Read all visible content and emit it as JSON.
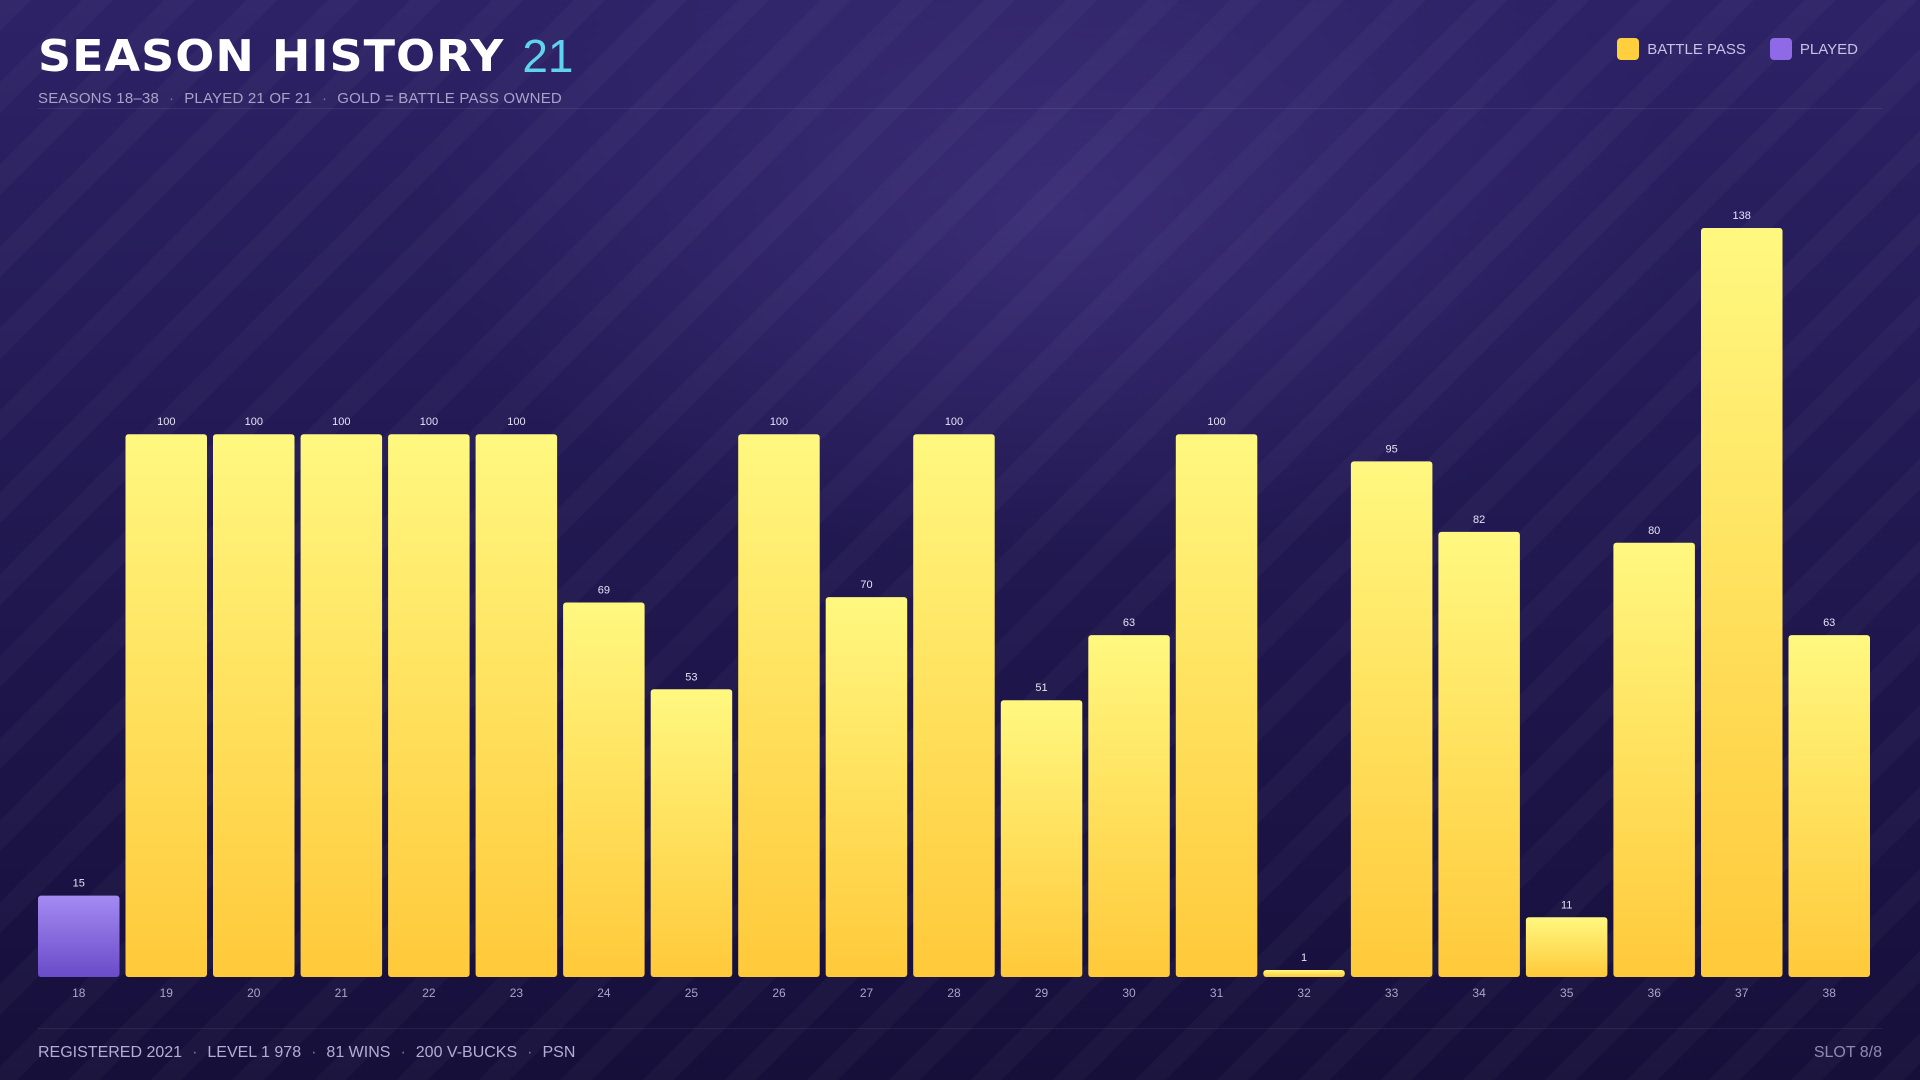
{
  "header": {
    "title": "SEASON HISTORY",
    "count": "21",
    "subtitle": [
      "SEASONS 18–38",
      "PLAYED 21 OF 21",
      "GOLD = BATTLE PASS OWNED"
    ]
  },
  "legend": [
    {
      "label": "BATTLE PASS",
      "color": "#ffcf3d"
    },
    {
      "label": "PLAYED",
      "color": "#8f6ae6"
    }
  ],
  "footer": {
    "stats": [
      "REGISTERED 2021",
      "LEVEL 1 978",
      "81 WINS",
      "200 V-BUCKS",
      "PSN"
    ],
    "slot": "SLOT 8/8"
  },
  "chart_data": {
    "type": "bar",
    "categories": [
      "18",
      "19",
      "20",
      "21",
      "22",
      "23",
      "24",
      "25",
      "26",
      "27",
      "28",
      "29",
      "30",
      "31",
      "32",
      "33",
      "34",
      "35",
      "36",
      "37",
      "38"
    ],
    "values": [
      15,
      100,
      100,
      100,
      100,
      100,
      69,
      53,
      100,
      70,
      100,
      51,
      63,
      100,
      1,
      95,
      82,
      11,
      80,
      138,
      63
    ],
    "battle_pass": [
      false,
      true,
      true,
      true,
      true,
      true,
      true,
      true,
      true,
      true,
      true,
      true,
      true,
      true,
      true,
      true,
      true,
      true,
      true,
      true,
      true
    ],
    "ylim": [
      0,
      138
    ],
    "grid": false,
    "legend_position": "top-right",
    "colors": {
      "battle_pass_top": "#fff880",
      "battle_pass_bottom": "#ffc93a",
      "played_top": "#a48bf2",
      "played_bottom": "#6a4bc9"
    }
  }
}
